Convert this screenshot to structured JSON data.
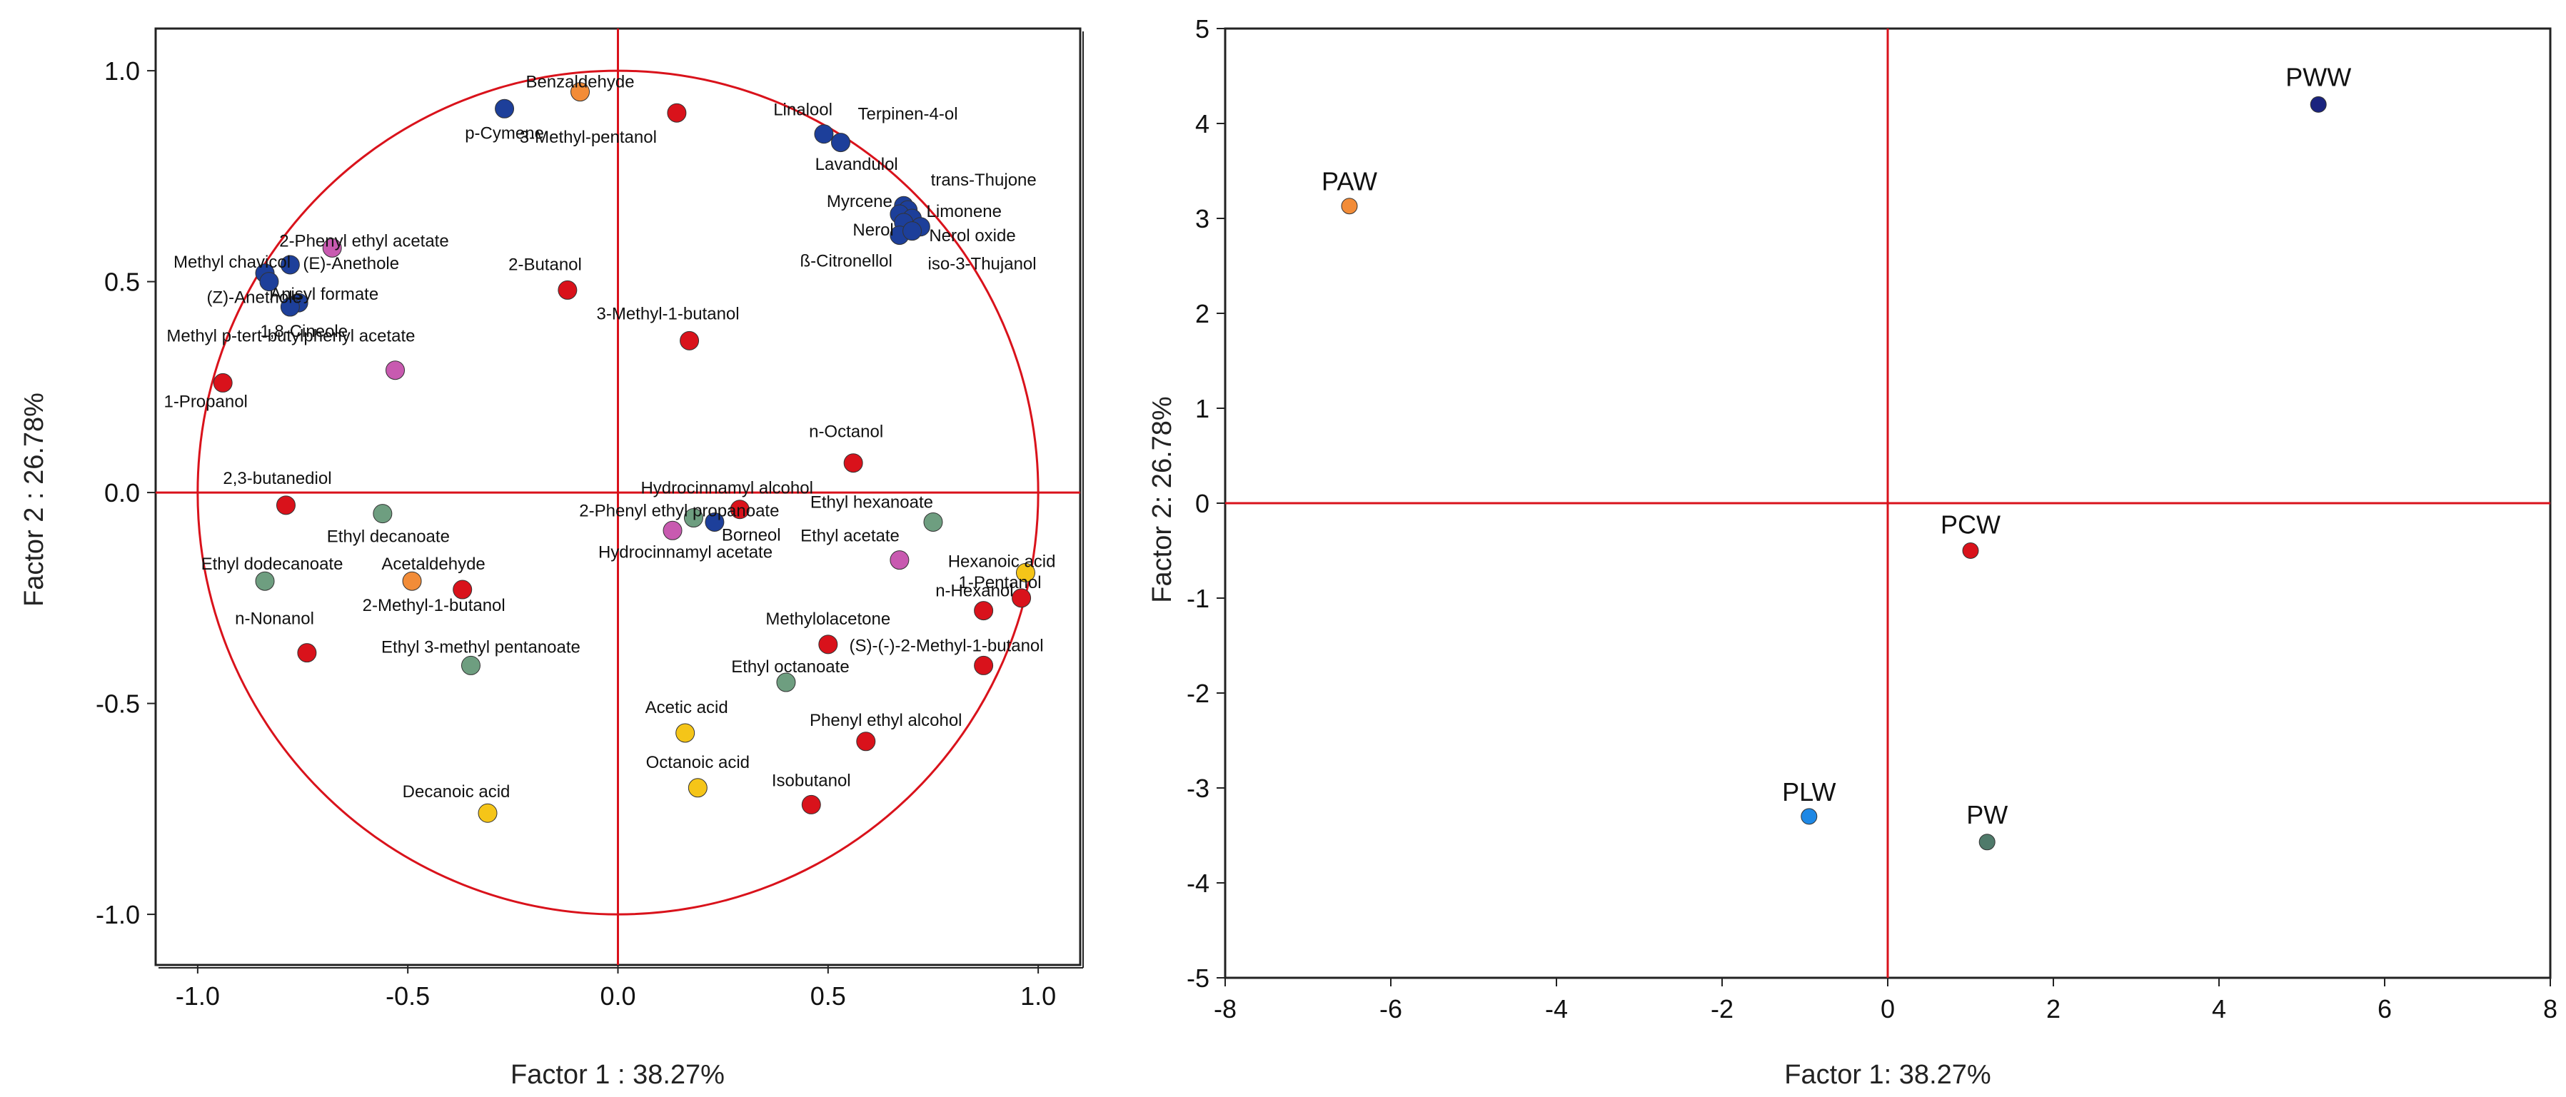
{
  "chart_data": [
    {
      "type": "scatter",
      "title": "",
      "xlabel": "Factor 1 : 38.27%",
      "ylabel": "Factor 2 : 26.78%",
      "xlim": [
        -1.1,
        1.1
      ],
      "ylim": [
        -1.12,
        1.1
      ],
      "xticks": [
        "-1.0",
        "-0.5",
        "0.0",
        "0.5",
        "1.0"
      ],
      "yticks": [
        "1.0",
        "0.5",
        "0.0",
        "-0.5",
        "-1.0"
      ],
      "xtick_values": [
        -1.0,
        -0.5,
        0.0,
        0.5,
        1.0
      ],
      "ytick_values": [
        1.0,
        0.5,
        0.0,
        -0.5,
        -1.0
      ],
      "unit_circle": true,
      "colors": {
        "red": "#d9121b",
        "blue": "#1d3f9a",
        "orange": "#f28c38",
        "pink": "#c85ab0",
        "green": "#6e9e80",
        "yellow": "#f5c518"
      },
      "points": [
        {
          "label": "Benzaldehyde",
          "x": -0.09,
          "y": 0.95,
          "color": "#f28c38",
          "anchor": "middle",
          "dx": 0,
          "dy": -6
        },
        {
          "label": "p-Cymene",
          "x": -0.27,
          "y": 0.91,
          "color": "#1d3f9a",
          "anchor": "middle",
          "dx": 0,
          "dy": 42
        },
        {
          "label": "3-Methyl-pentanol",
          "x": 0.14,
          "y": 0.9,
          "color": "#d9121b",
          "anchor": "end",
          "dx": -28,
          "dy": 42
        },
        {
          "label": "Linalool",
          "x": 0.49,
          "y": 0.85,
          "color": "#1d3f9a",
          "anchor": "end",
          "dx": 12,
          "dy": -26
        },
        {
          "label": "Terpinen-4-ol",
          "x": 0.53,
          "y": 0.83,
          "color": "#1d3f9a",
          "anchor": "start",
          "dx": 24,
          "dy": -32
        },
        {
          "label": "Lavandulol",
          "x": 0.68,
          "y": 0.68,
          "color": "#1d3f9a",
          "anchor": "end",
          "dx": -8,
          "dy": -50
        },
        {
          "label": "trans-Thujone",
          "x": 0.69,
          "y": 0.67,
          "color": "#1d3f9a",
          "anchor": "start",
          "dx": 32,
          "dy": -34
        },
        {
          "label": "Myrcene",
          "x": 0.67,
          "y": 0.66,
          "color": "#1d3f9a",
          "anchor": "end",
          "dx": -10,
          "dy": -10
        },
        {
          "label": "Limonene",
          "x": 0.7,
          "y": 0.65,
          "color": "#1d3f9a",
          "anchor": "start",
          "dx": 20,
          "dy": -2
        },
        {
          "label": "Nerol",
          "x": 0.68,
          "y": 0.64,
          "color": "#1d3f9a",
          "anchor": "end",
          "dx": -14,
          "dy": 18
        },
        {
          "label": "Nerol oxide",
          "x": 0.72,
          "y": 0.63,
          "color": "#1d3f9a",
          "anchor": "start",
          "dx": 12,
          "dy": 20
        },
        {
          "label": "ß-Citronellol",
          "x": 0.67,
          "y": 0.61,
          "color": "#1d3f9a",
          "anchor": "end",
          "dx": -10,
          "dy": 44
        },
        {
          "label": "iso-3-Thujanol",
          "x": 0.7,
          "y": 0.62,
          "color": "#1d3f9a",
          "anchor": "start",
          "dx": 22,
          "dy": 54
        },
        {
          "label": "2-Phenyl ethyl acetate",
          "x": -0.68,
          "y": 0.58,
          "color": "#c85ab0",
          "anchor": "start",
          "dx": -74,
          "dy": -2
        },
        {
          "label": "(E)-Anethole",
          "x": -0.78,
          "y": 0.54,
          "color": "#1d3f9a",
          "anchor": "start",
          "dx": 18,
          "dy": 6
        },
        {
          "label": "Methyl chavicol",
          "x": -0.84,
          "y": 0.52,
          "color": "#1d3f9a",
          "anchor": "end",
          "dx": 36,
          "dy": -8
        },
        {
          "label": "(Z)-Anethole",
          "x": -0.83,
          "y": 0.5,
          "color": "#1d3f9a",
          "anchor": "end",
          "dx": 46,
          "dy": 30
        },
        {
          "label": "Anisyl formate",
          "x": -0.76,
          "y": 0.45,
          "color": "#1d3f9a",
          "anchor": "start",
          "dx": -40,
          "dy": -4
        },
        {
          "label": "1,8-Cineole",
          "x": -0.78,
          "y": 0.44,
          "color": "#1d3f9a",
          "anchor": "start",
          "dx": -42,
          "dy": 42
        },
        {
          "label": "2-Butanol",
          "x": -0.12,
          "y": 0.48,
          "color": "#d9121b",
          "anchor": "end",
          "dx": 20,
          "dy": -28
        },
        {
          "label": "3-Methyl-1-butanol",
          "x": 0.17,
          "y": 0.36,
          "color": "#d9121b",
          "anchor": "middle",
          "dx": -30,
          "dy": -30
        },
        {
          "label": "Methyl p-tert-butylphenyl acetate",
          "x": -0.53,
          "y": 0.29,
          "color": "#c85ab0",
          "anchor": "end",
          "dx": 28,
          "dy": -40
        },
        {
          "label": "1-Propanol",
          "x": -0.94,
          "y": 0.26,
          "color": "#d9121b",
          "anchor": "middle",
          "dx": -24,
          "dy": 34
        },
        {
          "label": "n-Octanol",
          "x": 0.56,
          "y": 0.07,
          "color": "#d9121b",
          "anchor": "middle",
          "dx": -10,
          "dy": -36
        },
        {
          "label": "2,3-butanediol",
          "x": -0.79,
          "y": -0.03,
          "color": "#d9121b",
          "anchor": "middle",
          "dx": -12,
          "dy": -30
        },
        {
          "label": "Ethyl decanoate",
          "x": -0.56,
          "y": -0.05,
          "color": "#6e9e80",
          "anchor": "middle",
          "dx": 8,
          "dy": 40
        },
        {
          "label": "Hydrocinnamyl alcohol",
          "x": 0.29,
          "y": -0.04,
          "color": "#d9121b",
          "anchor": "middle",
          "dx": -18,
          "dy": -22
        },
        {
          "label": "2-Phenyl ethyl propanoate",
          "x": 0.18,
          "y": -0.06,
          "color": "#6e9e80",
          "anchor": "end",
          "dx": 120,
          "dy": -2
        },
        {
          "label": "Borneol",
          "x": 0.23,
          "y": -0.07,
          "color": "#1d3f9a",
          "anchor": "start",
          "dx": 10,
          "dy": 26
        },
        {
          "label": "Hydrocinnamyl acetate",
          "x": 0.13,
          "y": -0.09,
          "color": "#c85ab0",
          "anchor": "middle",
          "dx": 18,
          "dy": 38
        },
        {
          "label": "Ethyl hexanoate",
          "x": 0.75,
          "y": -0.07,
          "color": "#6e9e80",
          "anchor": "end",
          "dx": 0,
          "dy": -20
        },
        {
          "label": "Ethyl acetate",
          "x": 0.67,
          "y": -0.16,
          "color": "#c85ab0",
          "anchor": "end",
          "dx": 0,
          "dy": -26
        },
        {
          "label": "Hexanoic acid",
          "x": 0.97,
          "y": -0.19,
          "color": "#f5c518",
          "anchor": "end",
          "dx": 42,
          "dy": -8
        },
        {
          "label": "1-Pentanol",
          "x": 0.96,
          "y": -0.25,
          "color": "#d9121b",
          "anchor": "end",
          "dx": 28,
          "dy": -14
        },
        {
          "label": "n-Hexanol",
          "x": 0.87,
          "y": -0.28,
          "color": "#d9121b",
          "anchor": "end",
          "dx": 42,
          "dy": -20
        },
        {
          "label": "Ethyl dodecanoate",
          "x": -0.84,
          "y": -0.21,
          "color": "#6e9e80",
          "anchor": "middle",
          "dx": 10,
          "dy": -16
        },
        {
          "label": "Acetaldehyde",
          "x": -0.49,
          "y": -0.21,
          "color": "#f28c38",
          "anchor": "middle",
          "dx": 30,
          "dy": -16
        },
        {
          "label": "2-Methyl-1-butanol",
          "x": -0.37,
          "y": -0.23,
          "color": "#d9121b",
          "anchor": "middle",
          "dx": -40,
          "dy": 30
        },
        {
          "label": "n-Nonanol",
          "x": -0.74,
          "y": -0.38,
          "color": "#d9121b",
          "anchor": "end",
          "dx": 10,
          "dy": -40
        },
        {
          "label": "Ethyl 3-methyl pentanoate",
          "x": -0.35,
          "y": -0.41,
          "color": "#6e9e80",
          "anchor": "middle",
          "dx": 14,
          "dy": -18
        },
        {
          "label": "Methylolacetone",
          "x": 0.5,
          "y": -0.36,
          "color": "#d9121b",
          "anchor": "middle",
          "dx": 0,
          "dy": -28
        },
        {
          "label": "(S)-(-)-2-Methyl-1-butanol",
          "x": 0.87,
          "y": -0.41,
          "color": "#d9121b",
          "anchor": "end",
          "dx": 84,
          "dy": -20
        },
        {
          "label": "Ethyl octanoate",
          "x": 0.4,
          "y": -0.45,
          "color": "#6e9e80",
          "anchor": "middle",
          "dx": 6,
          "dy": -14
        },
        {
          "label": "Acetic acid",
          "x": 0.16,
          "y": -0.57,
          "color": "#f5c518",
          "anchor": "middle",
          "dx": 2,
          "dy": -28
        },
        {
          "label": "Phenyl ethyl alcohol",
          "x": 0.59,
          "y": -0.59,
          "color": "#d9121b",
          "anchor": "middle",
          "dx": 28,
          "dy": -22
        },
        {
          "label": "Octanoic acid",
          "x": 0.19,
          "y": -0.7,
          "color": "#f5c518",
          "anchor": "middle",
          "dx": 0,
          "dy": -28
        },
        {
          "label": "Isobutanol",
          "x": 0.46,
          "y": -0.74,
          "color": "#d9121b",
          "anchor": "middle",
          "dx": 0,
          "dy": -26
        },
        {
          "label": "Decanoic acid",
          "x": -0.31,
          "y": -0.76,
          "color": "#f5c518",
          "anchor": "middle",
          "dx": -44,
          "dy": -22
        }
      ]
    },
    {
      "type": "scatter",
      "title": "",
      "xlabel": "Factor 1: 38.27%",
      "ylabel": "Factor 2: 26.78%",
      "xlim": [
        -8,
        8
      ],
      "ylim": [
        -5,
        5
      ],
      "xticks": [
        "-8",
        "-6",
        "-4",
        "-2",
        "0",
        "2",
        "4",
        "6",
        "8"
      ],
      "yticks": [
        "5",
        "4",
        "3",
        "2",
        "1",
        "0",
        "-1",
        "-2",
        "-3",
        "-4",
        "-5"
      ],
      "xtick_values": [
        -8,
        -6,
        -4,
        -2,
        0,
        2,
        4,
        6,
        8
      ],
      "ytick_values": [
        5,
        4,
        3,
        2,
        1,
        0,
        -1,
        -2,
        -3,
        -4,
        -5
      ],
      "points": [
        {
          "label": "PWW",
          "x": 5.2,
          "y": 4.2,
          "color": "#1a237e",
          "anchor": "middle",
          "dx": 0,
          "dy": -26
        },
        {
          "label": "PAW",
          "x": -6.5,
          "y": 3.13,
          "color": "#f28c38",
          "anchor": "middle",
          "dx": 0,
          "dy": -22
        },
        {
          "label": "PCW",
          "x": 1.0,
          "y": -0.5,
          "color": "#d9121b",
          "anchor": "middle",
          "dx": 0,
          "dy": -24
        },
        {
          "label": "PLW",
          "x": -0.95,
          "y": -3.3,
          "color": "#1e88e5",
          "anchor": "middle",
          "dx": 0,
          "dy": -22
        },
        {
          "label": "PW",
          "x": 1.2,
          "y": -3.57,
          "color": "#4f7a6a",
          "anchor": "middle",
          "dx": 0,
          "dy": -26
        }
      ]
    }
  ]
}
